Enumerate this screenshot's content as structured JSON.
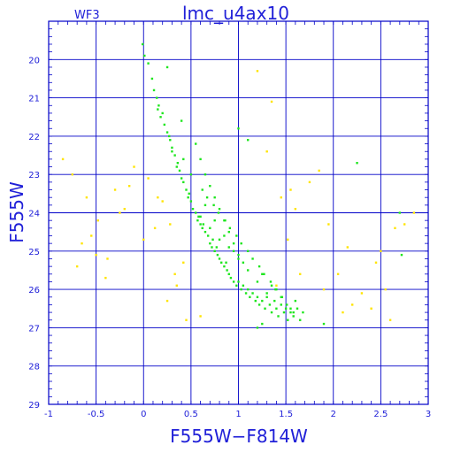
{
  "header": {
    "chip_label": "WF3",
    "title": "lmc_u4ax10"
  },
  "colors": {
    "frame": "#0000c8",
    "grid": "#0000c8",
    "text": "#2020d8",
    "members": "#1ee61e",
    "field": "#ffe400"
  },
  "chart_data": {
    "type": "scatter",
    "title": "lmc_u4ax10",
    "xlabel": "F555W−F814W",
    "ylabel": "F555W",
    "xlim": [
      -1,
      3
    ],
    "ylim": [
      29,
      19
    ],
    "y_inverted": true,
    "grid": true,
    "x_ticks": [
      -1,
      -0.5,
      0,
      0.5,
      1,
      1.5,
      2,
      2.5,
      3
    ],
    "x_tick_labels": [
      "-1",
      "-0.5",
      "0",
      "0.5",
      "1",
      "1.5",
      "2",
      "2.5",
      "3"
    ],
    "y_ticks": [
      20,
      21,
      22,
      23,
      24,
      25,
      26,
      27,
      28,
      29
    ],
    "y_tick_labels": [
      "20",
      "21",
      "22",
      "23",
      "24",
      "25",
      "26",
      "27",
      "28",
      "29"
    ],
    "series": [
      {
        "color": "#1ee61e",
        "marker": "dot",
        "x": [
          -0.01,
          0.01,
          0.05,
          0.09,
          0.11,
          0.14,
          0.16,
          0.18,
          0.15,
          0.22,
          0.25,
          0.28,
          0.3,
          0.27,
          0.33,
          0.36,
          0.38,
          0.4,
          0.35,
          0.42,
          0.45,
          0.47,
          0.5,
          0.48,
          0.52,
          0.55,
          0.57,
          0.6,
          0.58,
          0.62,
          0.65,
          0.68,
          0.63,
          0.7,
          0.72,
          0.75,
          0.73,
          0.78,
          0.8,
          0.77,
          0.82,
          0.85,
          0.88,
          0.9,
          0.87,
          0.92,
          0.95,
          0.98,
          1.0,
          1.03,
          1.05,
          1.08,
          1.1,
          1.12,
          1.15,
          1.18,
          1.2,
          1.22,
          1.25,
          1.28,
          1.3,
          1.33,
          1.35,
          1.38,
          1.4,
          1.42,
          1.45,
          1.48,
          1.5,
          1.52,
          1.55,
          1.58,
          1.62,
          1.65,
          1.68,
          0.55,
          0.6,
          0.65,
          0.7,
          0.75,
          0.8,
          0.85,
          0.9,
          0.95,
          1.0,
          0.5,
          0.62,
          0.74,
          0.86,
          0.98,
          1.1,
          1.22,
          1.34,
          1.46,
          1.58,
          0.3,
          0.42,
          0.67,
          0.79,
          0.91,
          1.03,
          1.15,
          1.27,
          1.39,
          1.51,
          0.2,
          0.9,
          1.0,
          1.1,
          1.2,
          1.3,
          0.8,
          0.7,
          0.6,
          1.4,
          1.6,
          1.25,
          1.35,
          1.45,
          1.55,
          1.05,
          0.95,
          0.85,
          0.75,
          0.65,
          2.25,
          2.7,
          2.72,
          1.2,
          1.25,
          1.9,
          0.25,
          0.4,
          1.0,
          1.1
        ],
        "y": [
          19.6,
          19.9,
          20.1,
          20.5,
          20.8,
          21.0,
          21.2,
          21.5,
          21.3,
          21.7,
          21.9,
          22.1,
          22.3,
          22.0,
          22.5,
          22.7,
          22.9,
          23.1,
          22.8,
          23.2,
          23.4,
          23.6,
          23.7,
          23.5,
          23.9,
          24.0,
          24.2,
          24.3,
          24.1,
          24.4,
          24.5,
          24.6,
          24.3,
          24.8,
          24.9,
          25.0,
          24.7,
          25.1,
          25.2,
          24.9,
          25.3,
          25.4,
          25.5,
          25.6,
          25.3,
          25.7,
          25.8,
          25.9,
          25.8,
          26.0,
          25.9,
          26.1,
          26.0,
          26.2,
          26.1,
          26.3,
          26.2,
          26.4,
          26.3,
          26.5,
          26.2,
          26.4,
          26.6,
          26.3,
          26.5,
          26.7,
          26.4,
          26.6,
          26.5,
          26.8,
          26.6,
          26.7,
          26.5,
          26.8,
          26.6,
          22.2,
          22.6,
          23.0,
          23.3,
          23.6,
          23.9,
          24.2,
          24.5,
          24.8,
          25.1,
          23.0,
          23.4,
          23.8,
          24.2,
          24.6,
          25.0,
          25.4,
          25.8,
          26.2,
          26.6,
          22.4,
          22.6,
          23.6,
          24.0,
          24.4,
          24.8,
          25.2,
          25.6,
          26.0,
          26.4,
          21.4,
          24.9,
          25.2,
          25.5,
          25.8,
          26.1,
          24.7,
          24.4,
          24.1,
          26.0,
          26.3,
          25.6,
          25.9,
          26.2,
          26.5,
          25.3,
          25.0,
          24.6,
          24.2,
          23.8,
          22.7,
          24.0,
          25.1,
          27.0,
          26.9,
          26.9,
          20.2,
          21.6,
          21.8,
          22.1
        ]
      },
      {
        "color": "#ffe400",
        "marker": "dot",
        "x": [
          -0.85,
          -0.75,
          -0.6,
          -0.55,
          -0.48,
          -0.38,
          -0.3,
          -0.2,
          -0.1,
          0.05,
          0.12,
          0.2,
          0.28,
          0.33,
          0.42,
          -0.65,
          -0.5,
          -0.25,
          -0.15,
          0.0,
          0.15,
          1.3,
          1.45,
          1.52,
          1.6,
          1.75,
          1.85,
          1.95,
          2.05,
          2.15,
          2.3,
          2.4,
          2.55,
          2.65,
          2.75,
          2.85,
          1.4,
          1.65,
          1.9,
          2.2,
          2.45,
          2.5,
          1.55,
          0.6,
          0.45,
          1.2,
          1.35,
          -0.4,
          -0.7,
          0.25,
          0.35,
          2.1,
          2.6
        ],
        "y": [
          22.6,
          23.0,
          23.6,
          24.6,
          24.2,
          25.2,
          23.4,
          23.9,
          22.8,
          23.1,
          24.4,
          23.7,
          24.3,
          25.6,
          25.3,
          24.8,
          25.1,
          24.0,
          23.3,
          24.7,
          23.6,
          22.4,
          23.6,
          24.7,
          23.9,
          23.2,
          22.9,
          24.3,
          25.6,
          24.9,
          26.1,
          26.5,
          26.0,
          24.4,
          24.3,
          24.0,
          25.9,
          25.6,
          26.0,
          26.4,
          25.3,
          25.0,
          23.4,
          26.7,
          26.8,
          20.3,
          21.1,
          25.7,
          25.4,
          26.3,
          25.9,
          26.6,
          26.8
        ]
      }
    ]
  }
}
